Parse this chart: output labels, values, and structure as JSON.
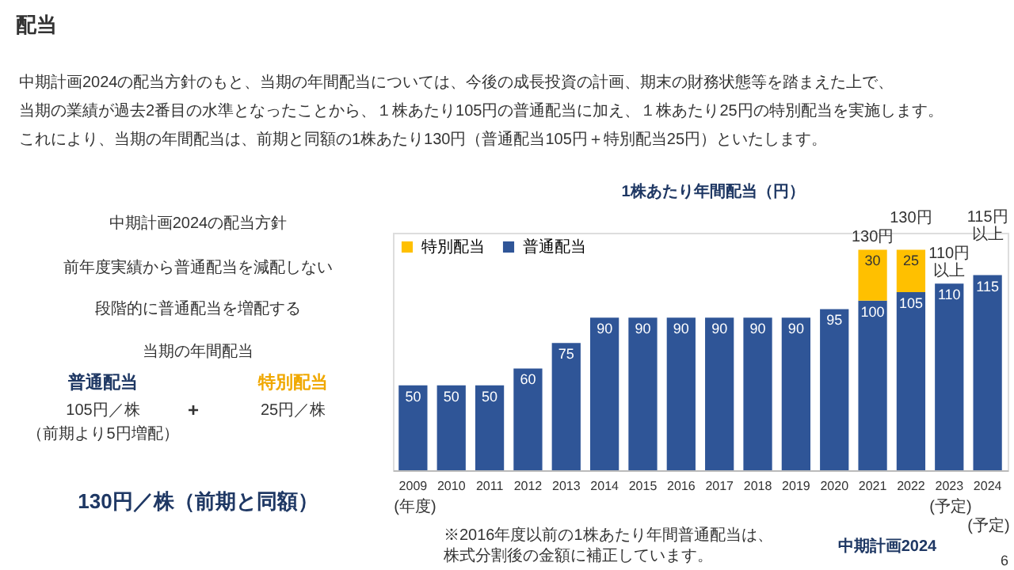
{
  "chart_data": {
    "type": "bar",
    "title": "1株あたり年間配当（円）",
    "categories": [
      "2009",
      "2010",
      "2011",
      "2012",
      "2013",
      "2014",
      "2015",
      "2016",
      "2017",
      "2018",
      "2019",
      "2020",
      "2021",
      "2022",
      "2023",
      "2024"
    ],
    "series": [
      {
        "name": "普通配当",
        "color": "#2f5597",
        "values": [
          50,
          50,
          50,
          60,
          75,
          90,
          90,
          90,
          90,
          90,
          90,
          95,
          100,
          105,
          110,
          115
        ]
      },
      {
        "name": "特別配当",
        "color": "#ffc000",
        "values": [
          null,
          null,
          null,
          null,
          null,
          null,
          null,
          null,
          null,
          null,
          null,
          null,
          30,
          25,
          null,
          null
        ]
      }
    ],
    "stacked": true,
    "ylim": [
      0,
      140
    ],
    "data_labels": true,
    "totals": [
      null,
      null,
      null,
      null,
      null,
      null,
      null,
      null,
      null,
      null,
      null,
      null,
      "130円",
      "130円",
      "110円以上",
      "115円以上"
    ],
    "legend": "top left",
    "tick_labels": "x",
    "annotations": [
      "配当",
      "中期計画2024の配当方針のもと、当期の年間配当については、今後の成長投資の計画、期末の財務状態等を踏まえた上で、",
      "当期の業績が過去2番目の水準となったことから、１株あたり105円の普通配当に加え、１株あたり25円の特別配当を実施します。",
      "これにより、当期の年間配当は、前期と同額の1株あたり130円（普通配当105円＋特別配当25円）といたします。",
      "中期計画2024の配当方針",
      "前年度実績から普通配当を減配しない",
      "段階的に普通配当を増配する",
      "当期の年間配当",
      "普通配当",
      "105円／株",
      "（前期より5円増配）",
      "+",
      "特別配当",
      "25円／株",
      "130円／株（前期と同額）",
      "(年度)",
      "(予定)",
      "(予定)",
      "※2016年度以前の1株あたり年間普通配当は、株式分割後の金額に補正しています。",
      "中期計画2024",
      "6"
    ]
  }
}
